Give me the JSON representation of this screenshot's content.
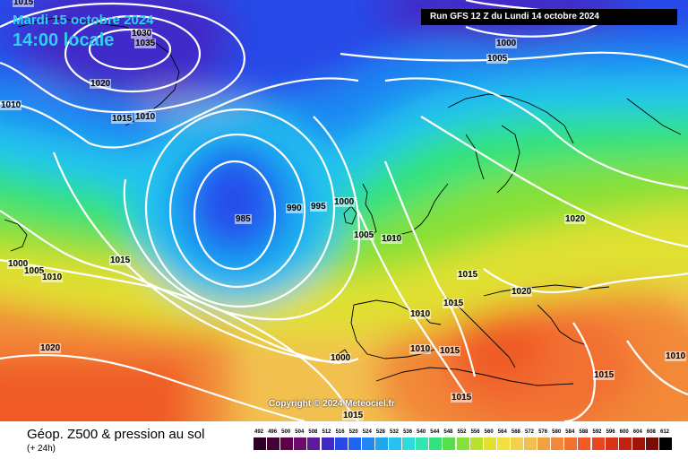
{
  "header": {
    "date_line1": "Mardi 15 octobre 2024",
    "date_line2": "14:00 locale",
    "run_info": "Run GFS 12 Z du Lundi 14 octobre 2024"
  },
  "footer": {
    "title": "Géop. Z500 & pression au sol",
    "subtitle": "(+ 24h)",
    "copyright": "Copyright © 2024 Meteociel.fr"
  },
  "legend": {
    "values": [
      "492",
      "496",
      "500",
      "504",
      "508",
      "512",
      "516",
      "520",
      "524",
      "528",
      "532",
      "536",
      "540",
      "544",
      "548",
      "552",
      "556",
      "560",
      "564",
      "568",
      "572",
      "576",
      "580",
      "584",
      "588",
      "592",
      "596",
      "600",
      "604",
      "608",
      "612"
    ],
    "colors": [
      "#2e0026",
      "#450036",
      "#5c0049",
      "#6f0a6a",
      "#5a1a9a",
      "#3f2ac8",
      "#2848e8",
      "#1f64f2",
      "#1f86f2",
      "#1fa6f0",
      "#24c4ee",
      "#2edbdb",
      "#33e6b0",
      "#33e27a",
      "#55e04a",
      "#86e036",
      "#b8e030",
      "#e0e030",
      "#f2e040",
      "#f2d050",
      "#f2c050",
      "#f2a040",
      "#f28838",
      "#f27030",
      "#f05a28",
      "#e84620",
      "#d83418",
      "#c02410",
      "#a0140a",
      "#7a0a06",
      "#000000"
    ]
  },
  "isobars": [
    {
      "id": "iso-1030",
      "value": "1030"
    },
    {
      "id": "iso-1035",
      "value": "1035"
    },
    {
      "id": "iso-1015-nw",
      "value": "1015"
    },
    {
      "id": "iso-1010-w",
      "value": "1010"
    },
    {
      "id": "iso-1020-gr",
      "value": "1020"
    },
    {
      "id": "iso-1015-gr",
      "value": "1015"
    },
    {
      "id": "iso-1010-gr",
      "value": "1010"
    },
    {
      "id": "iso-1000-n",
      "value": "1000"
    },
    {
      "id": "iso-1005-n",
      "value": "1005"
    },
    {
      "id": "iso-985",
      "value": "985"
    },
    {
      "id": "iso-990",
      "value": "990"
    },
    {
      "id": "iso-995",
      "value": "995"
    },
    {
      "id": "iso-1000-uk",
      "value": "1000"
    },
    {
      "id": "iso-1005-uk",
      "value": "1005"
    },
    {
      "id": "iso-1010-uk",
      "value": "1010"
    },
    {
      "id": "iso-1020-ne",
      "value": "1020"
    },
    {
      "id": "iso-1000-wa",
      "value": "1000"
    },
    {
      "id": "iso-1005-wa",
      "value": "1005"
    },
    {
      "id": "iso-1010-wa",
      "value": "1010"
    },
    {
      "id": "iso-1015-atl",
      "value": "1015"
    },
    {
      "id": "iso-1020-sw",
      "value": "1020"
    },
    {
      "id": "iso-1015-fr",
      "value": "1015"
    },
    {
      "id": "iso-1015-fr2",
      "value": "1015"
    },
    {
      "id": "iso-1020-al",
      "value": "1020"
    },
    {
      "id": "iso-1010-sp",
      "value": "1010"
    },
    {
      "id": "iso-1010-sp2",
      "value": "1010"
    },
    {
      "id": "iso-1015-sp",
      "value": "1015"
    },
    {
      "id": "iso-1000-az",
      "value": "1000"
    },
    {
      "id": "iso-1015-med",
      "value": "1015"
    },
    {
      "id": "iso-1015-bot",
      "value": "1015"
    },
    {
      "id": "iso-1015-e",
      "value": "1015"
    },
    {
      "id": "iso-1010-e",
      "value": "1010"
    }
  ]
}
